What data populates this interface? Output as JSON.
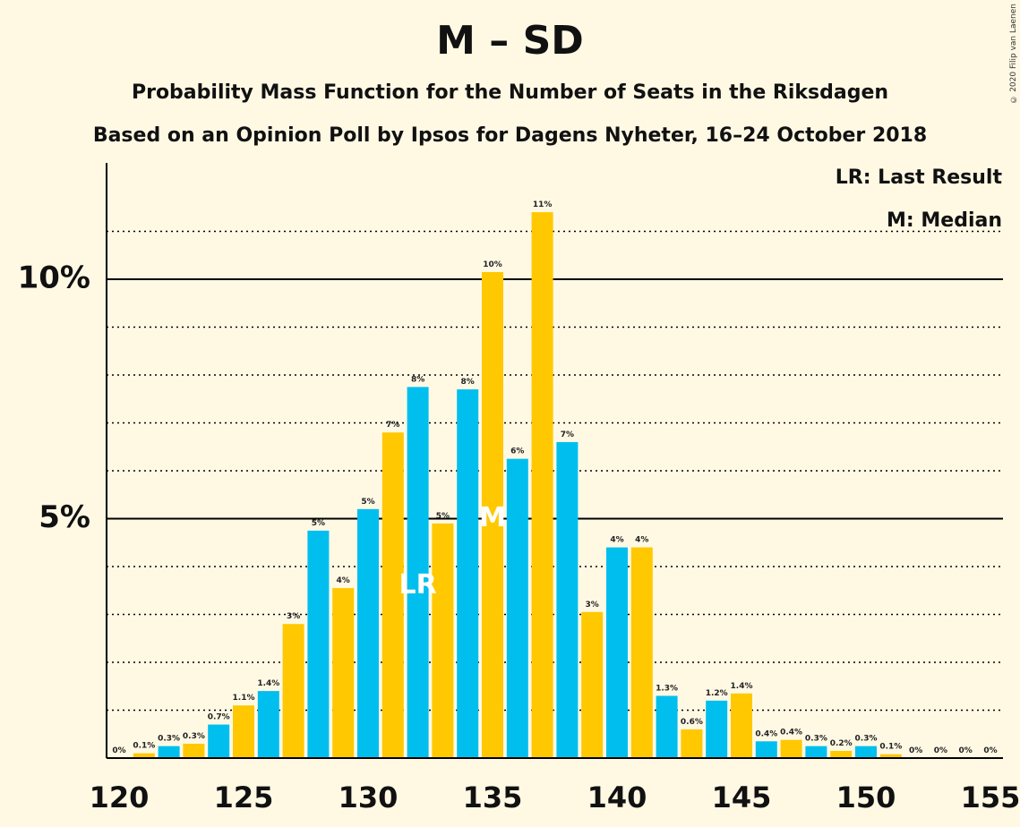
{
  "chart_data": {
    "type": "bar",
    "title": "M – SD",
    "subtitle": "Probability Mass Function for the Number of Seats in the Riksdagen",
    "subtitle2": "Based on an Opinion Poll by Ipsos for Dagens Nyheter, 16–24 October 2018",
    "copyright": "© 2020 Filip van Laenen",
    "legend": {
      "lr": "LR: Last Result",
      "m": "M: Median"
    },
    "colors": {
      "blue": "#00BFEF",
      "yellow": "#FFC800",
      "background": "#FFF9E4"
    },
    "x_ticks": [
      120,
      125,
      130,
      135,
      140,
      145,
      150,
      155
    ],
    "y_ticks": [
      {
        "value": 5,
        "label": "5%"
      },
      {
        "value": 10,
        "label": "10%"
      }
    ],
    "ylim": [
      0,
      12.4
    ],
    "xlim": [
      120,
      155
    ],
    "last_result_seat": 132,
    "last_result_label": "LR",
    "median_seat": 135,
    "median_label": "M",
    "bars": [
      {
        "x": 120,
        "value": 0,
        "label": "0%"
      },
      {
        "x": 121,
        "value": 0.1,
        "label": "0.1%"
      },
      {
        "x": 122,
        "value": 0.25,
        "label": "0.3%"
      },
      {
        "x": 123,
        "value": 0.3,
        "label": "0.3%"
      },
      {
        "x": 124,
        "value": 0.7,
        "label": "0.7%"
      },
      {
        "x": 125,
        "value": 1.1,
        "label": "1.1%"
      },
      {
        "x": 126,
        "value": 1.4,
        "label": "1.4%"
      },
      {
        "x": 127,
        "value": 2.8,
        "label": "3%"
      },
      {
        "x": 128,
        "value": 4.75,
        "label": "5%"
      },
      {
        "x": 129,
        "value": 3.55,
        "label": "4%"
      },
      {
        "x": 130,
        "value": 5.2,
        "label": "5%"
      },
      {
        "x": 131,
        "value": 6.8,
        "label": "7%"
      },
      {
        "x": 132,
        "value": 7.75,
        "label": "8%"
      },
      {
        "x": 133,
        "value": 4.9,
        "label": "5%"
      },
      {
        "x": 134,
        "value": 7.7,
        "label": "8%"
      },
      {
        "x": 135,
        "value": 10.15,
        "label": "10%"
      },
      {
        "x": 136,
        "value": 6.25,
        "label": "6%"
      },
      {
        "x": 137,
        "value": 11.4,
        "label": "11%"
      },
      {
        "x": 138,
        "value": 6.6,
        "label": "7%"
      },
      {
        "x": 139,
        "value": 3.05,
        "label": "3%"
      },
      {
        "x": 140,
        "value": 4.4,
        "label": "4%"
      },
      {
        "x": 141,
        "value": 4.4,
        "label": "4%"
      },
      {
        "x": 142,
        "value": 1.3,
        "label": "1.3%"
      },
      {
        "x": 143,
        "value": 0.6,
        "label": "0.6%"
      },
      {
        "x": 144,
        "value": 1.2,
        "label": "1.2%"
      },
      {
        "x": 145,
        "value": 1.35,
        "label": "1.4%"
      },
      {
        "x": 146,
        "value": 0.35,
        "label": "0.4%"
      },
      {
        "x": 147,
        "value": 0.38,
        "label": "0.4%"
      },
      {
        "x": 148,
        "value": 0.25,
        "label": "0.3%"
      },
      {
        "x": 149,
        "value": 0.15,
        "label": "0.2%"
      },
      {
        "x": 150,
        "value": 0.25,
        "label": "0.3%"
      },
      {
        "x": 151,
        "value": 0.08,
        "label": "0.1%"
      },
      {
        "x": 152,
        "value": 0,
        "label": "0%"
      },
      {
        "x": 153,
        "value": 0,
        "label": "0%"
      },
      {
        "x": 154,
        "value": 0,
        "label": "0%"
      },
      {
        "x": 155,
        "value": 0,
        "label": "0%"
      }
    ]
  }
}
